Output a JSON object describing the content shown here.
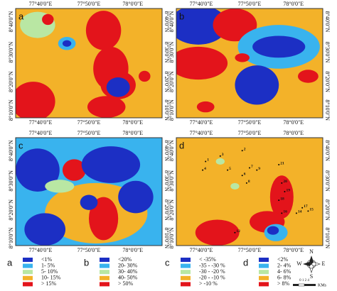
{
  "panels": [
    {
      "letter": "a",
      "top_labels": [
        "77°40'0\"E",
        "77°50'0\"E",
        "78°0'0\"E"
      ],
      "side_labels": [
        "8°40'0\"N",
        "8°30'0\"N",
        "8°20'0\"N",
        "8°10'0\"N"
      ]
    },
    {
      "letter": "b",
      "top_labels": [
        "77°40'0\"E",
        "77°50'0\"E",
        "78°0'0\"E"
      ],
      "side_labels": [
        "8°40'0\"N",
        "8°30'0\"N",
        "8°20'0\"N",
        "8°10'0\"N"
      ]
    },
    {
      "letter": "c",
      "top_labels": [
        "77°40'0\"E",
        "77°50'0\"E",
        "78°0'0\"E"
      ],
      "side_labels": [
        "8°40'0\"N",
        "8°30'0\"N",
        "8°20'0\"N",
        "8°10'0\"N"
      ]
    },
    {
      "letter": "d",
      "top_labels": [
        "77°40'0\"E",
        "77°50'0\"E",
        "78°0'0\"E"
      ],
      "side_labels": [
        "8°40'0\"N",
        "8°30'0\"N",
        "8°20'0\"N",
        "8°10'0\"N"
      ],
      "stations": [
        "2",
        "3",
        "1",
        "4",
        "5",
        "6",
        "7",
        "8",
        "9",
        "21",
        "20",
        "19",
        "18",
        "16",
        "17",
        "14",
        "15",
        "12"
      ]
    }
  ],
  "legends": [
    {
      "letter": "a",
      "items": [
        {
          "label": "<1%",
          "color": "#1c2fc4"
        },
        {
          "label": "1- 5%",
          "color": "#39b3ee"
        },
        {
          "label": "5- 10%",
          "color": "#b9e7a3"
        },
        {
          "label": "10- 15%",
          "color": "#f3b229"
        },
        {
          "label": "> 15%",
          "color": "#e3141b"
        }
      ]
    },
    {
      "letter": "b",
      "items": [
        {
          "label": "<20%",
          "color": "#1c2fc4"
        },
        {
          "label": "20- 30%",
          "color": "#39b3ee"
        },
        {
          "label": "30- 40%",
          "color": "#b9e7a3"
        },
        {
          "label": "40- 50%",
          "color": "#f3b229"
        },
        {
          "label": "> 50%",
          "color": "#e3141b"
        }
      ]
    },
    {
      "letter": "c",
      "items": [
        {
          "label": "< -35%",
          "color": "#1c2fc4"
        },
        {
          "label": "-35 - -30 %",
          "color": "#39b3ee"
        },
        {
          "label": "-30 - -20 %",
          "color": "#b9e7a3"
        },
        {
          "label": "-20 - -10 %",
          "color": "#f3b229"
        },
        {
          "label": "> -10 %",
          "color": "#e3141b"
        }
      ]
    },
    {
      "letter": "d",
      "items": [
        {
          "label": "<2%",
          "color": "#1c2fc4"
        },
        {
          "label": "2- 4%",
          "color": "#39b3ee"
        },
        {
          "label": "4- 6%",
          "color": "#b9e7a3"
        },
        {
          "label": "6- 8%",
          "color": "#f3b229"
        },
        {
          "label": "> 8%",
          "color": "#e3141b"
        }
      ]
    }
  ],
  "compass": {
    "n": "N",
    "s": "S",
    "e": "E",
    "w": "W"
  },
  "scale": {
    "ticks": "0 1 2 4",
    "unit": "KMs"
  }
}
